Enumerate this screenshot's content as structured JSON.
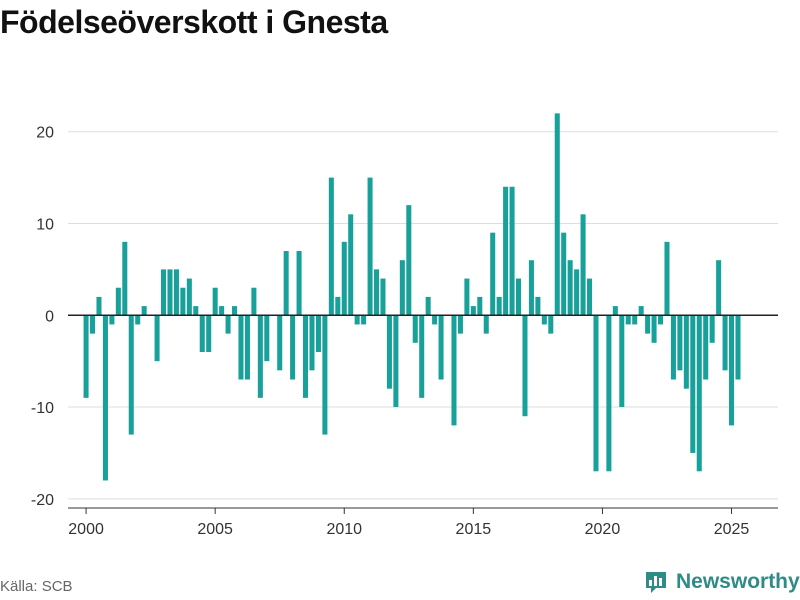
{
  "header": {
    "title": "Födelseöverskott i Gnesta"
  },
  "footer": {
    "source": "Källa: SCB",
    "brand": "Newsworthy"
  },
  "colors": {
    "bar": "#18a19a",
    "grid": "#dddddd",
    "zero_line": "#222222",
    "brand": "#2e8b86"
  },
  "chart_data": {
    "type": "bar",
    "title": "Födelseöverskott i Gnesta",
    "xlabel": "",
    "ylabel": "",
    "xlim": [
      1999.3,
      2026.8
    ],
    "ylim": [
      -21,
      24
    ],
    "yticks": [
      -20,
      -10,
      0,
      10,
      20
    ],
    "xticks": [
      2000,
      2005,
      2010,
      2015,
      2020,
      2025
    ],
    "grid": true,
    "x_start": 2000,
    "x_step": 0.25,
    "values": [
      -9,
      -2,
      2,
      -18,
      -1,
      3,
      8,
      -13,
      -1,
      1,
      0,
      -5,
      5,
      5,
      5,
      3,
      4,
      1,
      -4,
      -4,
      3,
      1,
      -2,
      1,
      -7,
      -7,
      3,
      -9,
      -5,
      0,
      -6,
      7,
      -7,
      7,
      -9,
      -6,
      -4,
      -13,
      15,
      2,
      8,
      11,
      -1,
      -1,
      15,
      5,
      4,
      -8,
      -10,
      6,
      12,
      -3,
      -9,
      2,
      -1,
      -7,
      0,
      -12,
      -2,
      4,
      1,
      2,
      -2,
      9,
      2,
      14,
      14,
      4,
      -11,
      6,
      2,
      -1,
      -2,
      22,
      9,
      6,
      5,
      11,
      4,
      -17,
      0,
      -17,
      1,
      -10,
      -1,
      -1,
      1,
      -2,
      -3,
      -1,
      8,
      -7,
      -6,
      -8,
      -15,
      -17,
      -7,
      -3,
      6,
      -6,
      -12,
      -7
    ]
  }
}
